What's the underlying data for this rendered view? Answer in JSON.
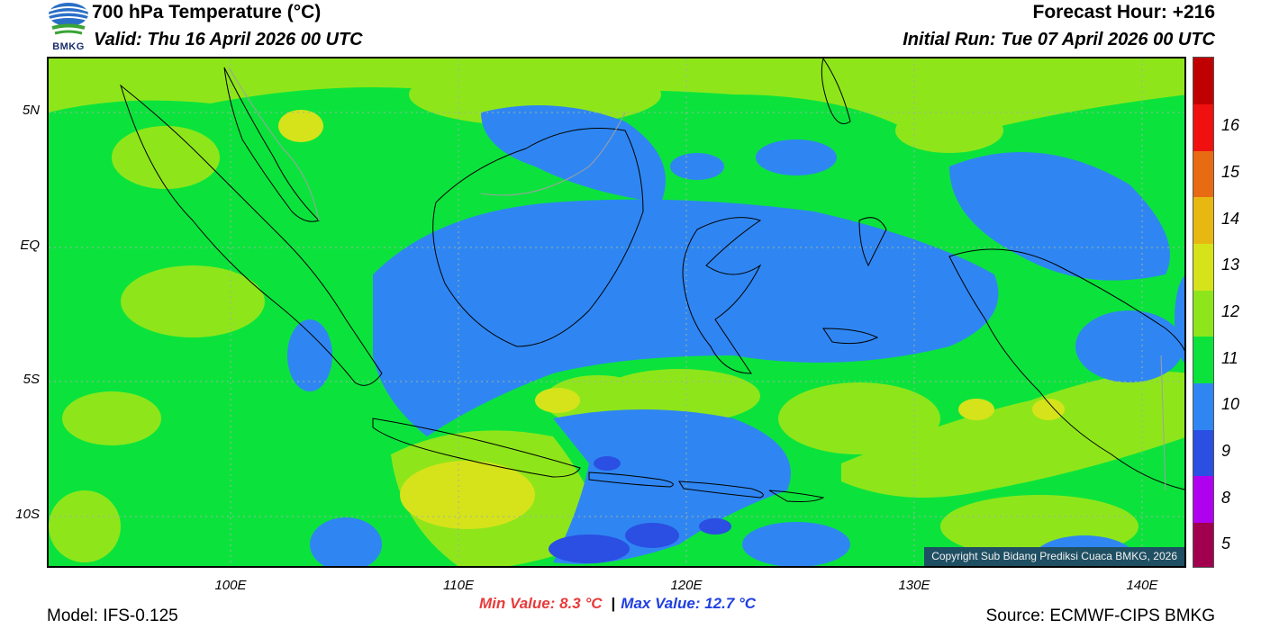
{
  "header": {
    "logo_text": "BMKG",
    "title": "700 hPa Temperature (°C)",
    "valid": "Valid: Thu 16 April 2026 00 UTC",
    "forecast_hour": "Forecast Hour: +216",
    "initial_run": "Initial Run: Tue 07 April 2026 00 UTC"
  },
  "map": {
    "lon_range": [
      92,
      142
    ],
    "lat_range": [
      -12,
      7
    ],
    "lat_ticks": [
      {
        "label": "5N",
        "value": 5
      },
      {
        "label": "EQ",
        "value": 0
      },
      {
        "label": "5S",
        "value": -5
      },
      {
        "label": "10S",
        "value": -10
      }
    ],
    "lon_ticks": [
      {
        "label": "100E",
        "value": 100
      },
      {
        "label": "110E",
        "value": 110
      },
      {
        "label": "120E",
        "value": 120
      },
      {
        "label": "130E",
        "value": 130
      },
      {
        "label": "140E",
        "value": 140
      }
    ],
    "grid": true,
    "copyright": "Copyright Sub Bidang Prediksi Cuaca BMKG, 2026"
  },
  "colorbar": {
    "levels": [
      {
        "label": "5",
        "color": "#a0004e"
      },
      {
        "label": "8",
        "color": "#b000f0"
      },
      {
        "label": "9",
        "color": "#2a4fe2"
      },
      {
        "label": "10",
        "color": "#2f86f2"
      },
      {
        "label": "11",
        "color": "#0be33c"
      },
      {
        "label": "12",
        "color": "#8ee61a"
      },
      {
        "label": "13",
        "color": "#d6e31a"
      },
      {
        "label": "14",
        "color": "#e8b812"
      },
      {
        "label": "15",
        "color": "#e86a12"
      },
      {
        "label": "16",
        "color": "#f01010"
      },
      {
        "label": "",
        "color": "#c00000"
      }
    ]
  },
  "footer": {
    "model": "Model: IFS-0.125",
    "min_value": "Min Value: 8.3 °C",
    "separator": "|",
    "max_value": "Max Value: 12.7 °C",
    "source": "Source: ECMWF-CIPS BMKG"
  }
}
